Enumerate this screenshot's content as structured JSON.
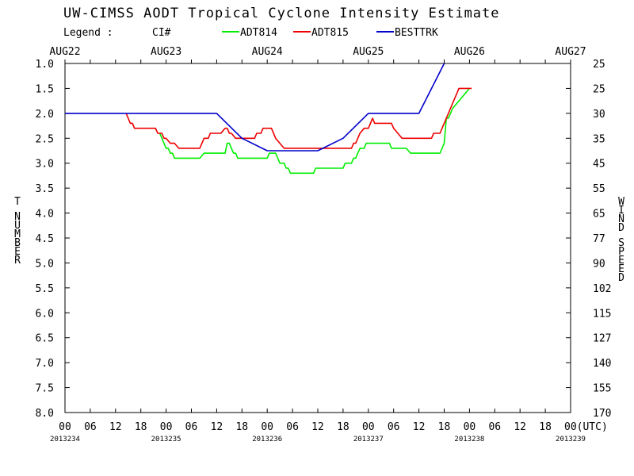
{
  "chart_data": {
    "type": "line",
    "title": "UW-CIMSS AODT Tropical Cyclone Intensity Estimate",
    "legend": {
      "label": "Legend :",
      "sublabel": "CI#",
      "placement": "top"
    },
    "ylabel": "T NUMBER",
    "y2label": "WIND SPEED",
    "ylim": [
      1.0,
      8.0
    ],
    "y_inverted": true,
    "xlim_hours": [
      0,
      120
    ],
    "grid": false,
    "top_date_labels": [
      "AUG22",
      "AUG23",
      "AUG24",
      "AUG25",
      "AUG26",
      "AUG27"
    ],
    "x_tick_labels": [
      "00",
      "06",
      "12",
      "18",
      "00",
      "06",
      "12",
      "18",
      "00",
      "06",
      "12",
      "18",
      "00",
      "06",
      "12",
      "18",
      "00",
      "06",
      "12",
      "18",
      "00(UTC)"
    ],
    "julian_labels": [
      "2013234",
      "2013235",
      "2013236",
      "2013237",
      "2013238",
      "2013239"
    ],
    "y_tick_labels": [
      "1.0",
      "1.5",
      "2.0",
      "2.5",
      "3.0",
      "3.5",
      "4.0",
      "4.5",
      "5.0",
      "5.5",
      "6.0",
      "6.5",
      "7.0",
      "7.5",
      "8.0"
    ],
    "wind_labels": [
      "25",
      "25",
      "30",
      "35",
      "45",
      "55",
      "65",
      "77",
      "90",
      "102",
      "115",
      "127",
      "140",
      "155",
      "170"
    ],
    "series": [
      {
        "name": "ADT814",
        "color": "#00ee00",
        "points": [
          [
            22.5,
            2.4
          ],
          [
            23,
            2.5
          ],
          [
            23.5,
            2.6
          ],
          [
            24,
            2.7
          ],
          [
            24.5,
            2.7
          ],
          [
            25,
            2.8
          ],
          [
            25.5,
            2.8
          ],
          [
            26,
            2.9
          ],
          [
            27,
            2.9
          ],
          [
            30,
            2.9
          ],
          [
            32,
            2.9
          ],
          [
            33,
            2.8
          ],
          [
            35,
            2.8
          ],
          [
            38,
            2.8
          ],
          [
            38.5,
            2.6
          ],
          [
            39,
            2.6
          ],
          [
            39.5,
            2.7
          ],
          [
            40,
            2.8
          ],
          [
            40.5,
            2.8
          ],
          [
            41,
            2.9
          ],
          [
            43,
            2.9
          ],
          [
            46,
            2.9
          ],
          [
            48,
            2.9
          ],
          [
            48.5,
            2.8
          ],
          [
            50,
            2.8
          ],
          [
            50.5,
            2.9
          ],
          [
            51,
            3.0
          ],
          [
            52,
            3.0
          ],
          [
            52.5,
            3.1
          ],
          [
            53,
            3.1
          ],
          [
            53.5,
            3.2
          ],
          [
            56,
            3.2
          ],
          [
            59,
            3.2
          ],
          [
            59.5,
            3.1
          ],
          [
            62,
            3.1
          ],
          [
            66,
            3.1
          ],
          [
            66.5,
            3.0
          ],
          [
            68,
            3.0
          ],
          [
            68.5,
            2.9
          ],
          [
            69,
            2.9
          ],
          [
            69.5,
            2.8
          ],
          [
            70,
            2.7
          ],
          [
            71,
            2.7
          ],
          [
            71.5,
            2.6
          ],
          [
            74,
            2.6
          ],
          [
            76,
            2.6
          ],
          [
            77,
            2.6
          ],
          [
            77.5,
            2.7
          ],
          [
            81,
            2.7
          ],
          [
            82,
            2.8
          ],
          [
            85,
            2.8
          ],
          [
            89,
            2.8
          ],
          [
            89.5,
            2.7
          ],
          [
            90,
            2.6
          ],
          [
            90.5,
            2.1
          ],
          [
            91,
            2.1
          ],
          [
            91.5,
            2.0
          ],
          [
            92,
            1.9
          ],
          [
            93,
            1.8
          ],
          [
            94,
            1.7
          ],
          [
            95,
            1.6
          ],
          [
            96,
            1.5
          ]
        ]
      },
      {
        "name": "ADT815",
        "color": "#ee0000",
        "points": [
          [
            14.5,
            2.0
          ],
          [
            15,
            2.1
          ],
          [
            15.5,
            2.2
          ],
          [
            16,
            2.2
          ],
          [
            16.5,
            2.3
          ],
          [
            18,
            2.3
          ],
          [
            19.5,
            2.3
          ],
          [
            21.5,
            2.3
          ],
          [
            22,
            2.4
          ],
          [
            23,
            2.4
          ],
          [
            23.5,
            2.5
          ],
          [
            24,
            2.5
          ],
          [
            25,
            2.6
          ],
          [
            26,
            2.6
          ],
          [
            27,
            2.7
          ],
          [
            30,
            2.7
          ],
          [
            32,
            2.7
          ],
          [
            32.5,
            2.6
          ],
          [
            33,
            2.5
          ],
          [
            34,
            2.5
          ],
          [
            34.5,
            2.4
          ],
          [
            37,
            2.4
          ],
          [
            38,
            2.3
          ],
          [
            38.5,
            2.3
          ],
          [
            39,
            2.4
          ],
          [
            39.5,
            2.4
          ],
          [
            40.5,
            2.5
          ],
          [
            44,
            2.5
          ],
          [
            45,
            2.5
          ],
          [
            45.5,
            2.4
          ],
          [
            46.5,
            2.4
          ],
          [
            47,
            2.3
          ],
          [
            49,
            2.3
          ],
          [
            49.5,
            2.4
          ],
          [
            50,
            2.5
          ],
          [
            51,
            2.6
          ],
          [
            52,
            2.7
          ],
          [
            59,
            2.7
          ],
          [
            66,
            2.7
          ],
          [
            68,
            2.7
          ],
          [
            68.5,
            2.6
          ],
          [
            69,
            2.6
          ],
          [
            69.5,
            2.5
          ],
          [
            70,
            2.4
          ],
          [
            71,
            2.3
          ],
          [
            72,
            2.3
          ],
          [
            72.5,
            2.2
          ],
          [
            73,
            2.1
          ],
          [
            73.5,
            2.2
          ],
          [
            76,
            2.2
          ],
          [
            77.5,
            2.2
          ],
          [
            78,
            2.3
          ],
          [
            79,
            2.4
          ],
          [
            80,
            2.5
          ],
          [
            86,
            2.5
          ],
          [
            87,
            2.5
          ],
          [
            87.5,
            2.4
          ],
          [
            89,
            2.4
          ],
          [
            89.5,
            2.3
          ],
          [
            90.5,
            2.1
          ],
          [
            91,
            2.0
          ],
          [
            92,
            1.8
          ],
          [
            93,
            1.6
          ],
          [
            93.5,
            1.5
          ],
          [
            96,
            1.5
          ],
          [
            96.5,
            1.5
          ]
        ]
      },
      {
        "name": "BESTTRK",
        "color": "#0000cc",
        "points": [
          [
            0,
            2.0
          ],
          [
            36,
            2.0
          ],
          [
            42,
            2.5
          ],
          [
            48,
            2.75
          ],
          [
            60,
            2.75
          ],
          [
            66,
            2.5
          ],
          [
            72,
            2.0
          ],
          [
            84,
            2.0
          ],
          [
            90,
            1.0
          ]
        ]
      }
    ]
  }
}
